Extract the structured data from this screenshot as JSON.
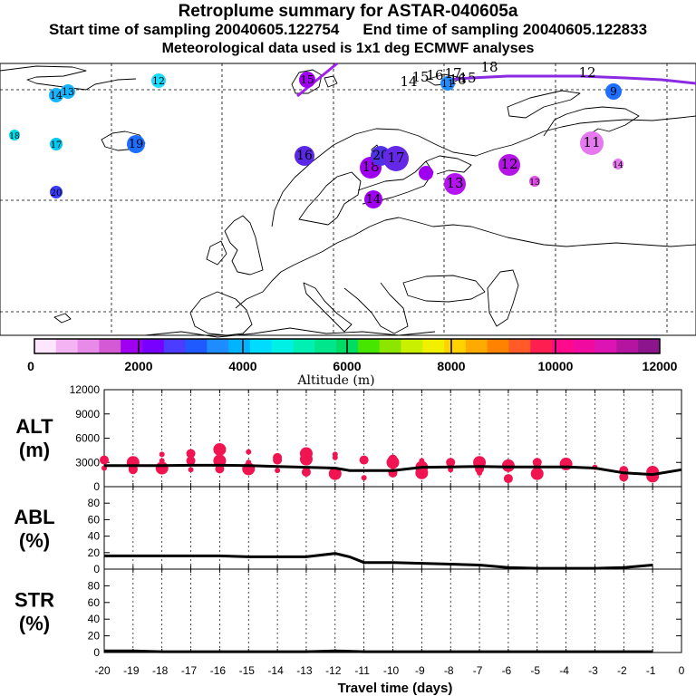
{
  "header": {
    "title": "Retroplume summary for ASTAR-040605a",
    "start_label": "Start time of sampling 20040605.122754",
    "end_label": "End time of sampling 20040605.122833",
    "met_label": "Meteorological data used is 1x1 deg ECMWF analyses"
  },
  "colorbar": {
    "ticks": [
      "0",
      "2000",
      "4000",
      "6000",
      "8000",
      "10000",
      "12000"
    ],
    "label": "Altitude (m)",
    "colors": [
      "#ffe6ff",
      "#f4b4f4",
      "#e88ae8",
      "#d45ad4",
      "#a000f0",
      "#7800ff",
      "#4b3cff",
      "#1e5aff",
      "#1e8cff",
      "#00b4ff",
      "#00dcff",
      "#00f0e6",
      "#00f0b4",
      "#00e68c",
      "#00dc64",
      "#46e600",
      "#8ce600",
      "#c8f000",
      "#f0f000",
      "#ffd200",
      "#ffaa00",
      "#ff8200",
      "#ff5a28",
      "#ff1e50",
      "#ff0a8c",
      "#f00aa0",
      "#dc14b4",
      "#b414a0",
      "#8c148c"
    ]
  },
  "map": {
    "markers": [
      {
        "label": "20",
        "color": "#3c3cff"
      },
      {
        "label": "19",
        "color": "#1e6eff"
      },
      {
        "label": "18",
        "color": "#00dce6"
      },
      {
        "label": "17",
        "color": "#00c8f0"
      },
      {
        "label": "14",
        "color": "#14b4ff"
      },
      {
        "label": "13",
        "color": "#14b4ff"
      },
      {
        "label": "12",
        "color": "#1edcff"
      },
      {
        "label": "11",
        "color": "#1e8cff"
      },
      {
        "label": "9",
        "color": "#1e6eff"
      },
      {
        "label": "16",
        "color": "#5a28e6"
      },
      {
        "label": "18",
        "color": "#a000f0"
      },
      {
        "label": "20",
        "color": "#5032e6"
      },
      {
        "label": "17",
        "color": "#6428e6"
      },
      {
        "label": "15",
        "color": "#a000f0"
      },
      {
        "label": "14",
        "color": "#a000f0"
      },
      {
        "label": "13",
        "color": "#b414f0"
      },
      {
        "label": "12",
        "color": "#b414e6"
      },
      {
        "label": "11",
        "color": "#e678f0"
      },
      {
        "label": "13",
        "color": "#dc50e6"
      },
      {
        "label": "14",
        "color": "#e678f0"
      }
    ],
    "track_labels": [
      "14",
      "15",
      "16",
      "17",
      "18",
      "16",
      "15",
      "12"
    ]
  },
  "alt_panel": {
    "title": "ALT",
    "unit": "(m)",
    "yticks": [
      "12000",
      "9000",
      "6000",
      "3000",
      "0"
    ]
  },
  "abl_panel": {
    "title": "ABL",
    "unit": "(%)",
    "yticks": [
      "80",
      "60",
      "40",
      "20",
      "0"
    ]
  },
  "str_panel": {
    "title": "STR",
    "unit": "(%)",
    "yticks": [
      "80",
      "60",
      "40",
      "20",
      "0"
    ]
  },
  "xaxis": {
    "ticks": [
      "-20",
      "-19",
      "-18",
      "-17",
      "-16",
      "-15",
      "-14",
      "-13",
      "-12",
      "-11",
      "-10",
      "-9",
      "-8",
      "-7",
      "-6",
      "-5",
      "-4",
      "-3",
      "-2",
      "-1",
      "0"
    ],
    "label": "Travel time (days)"
  },
  "chart_data": [
    {
      "type": "line",
      "title": "ALT",
      "ylabel": "(m)",
      "xlabel": "Travel time (days)",
      "ylim": [
        0,
        12000
      ],
      "xlim": [
        -20,
        0
      ],
      "series": [
        {
          "name": "mean altitude",
          "x": [
            -20,
            -19,
            -18,
            -17,
            -16,
            -15,
            -14,
            -13,
            -12,
            -11.5,
            -11,
            -10,
            -9,
            -8,
            -7,
            -6,
            -5,
            -4,
            -3,
            -2,
            -1,
            0
          ],
          "values": [
            2600,
            2600,
            2600,
            2650,
            2650,
            2600,
            2500,
            2400,
            2300,
            2000,
            2000,
            2000,
            2400,
            2450,
            2500,
            2450,
            2450,
            2450,
            2300,
            1700,
            1500,
            2100
          ]
        }
      ],
      "scatter": [
        {
          "x": -20,
          "y": 3300
        },
        {
          "x": -19,
          "y": 3000
        },
        {
          "x": -18,
          "y": 3200
        },
        {
          "x": -17,
          "y": 3200
        },
        {
          "x": -16,
          "y": 3200
        },
        {
          "x": -15,
          "y": 3000
        },
        {
          "x": -14,
          "y": 3300
        },
        {
          "x": -13,
          "y": 3400
        },
        {
          "x": -12,
          "y": 3600
        },
        {
          "x": -11,
          "y": 3300
        },
        {
          "x": -10,
          "y": 3000
        },
        {
          "x": -9,
          "y": 3200
        },
        {
          "x": -8,
          "y": 3000
        },
        {
          "x": -7,
          "y": 3000
        },
        {
          "x": -6,
          "y": 2900
        },
        {
          "x": -5,
          "y": 3000
        },
        {
          "x": -4,
          "y": 2800
        },
        {
          "x": -3,
          "y": 2400
        },
        {
          "x": -2,
          "y": 2000
        },
        {
          "x": -1,
          "y": 1800
        },
        {
          "x": -20,
          "y": 2300
        },
        {
          "x": -19,
          "y": 2100
        },
        {
          "x": -18,
          "y": 2300
        },
        {
          "x": -17,
          "y": 2100
        },
        {
          "x": -16,
          "y": 2200
        },
        {
          "x": -15,
          "y": 2200
        },
        {
          "x": -14,
          "y": 2000
        },
        {
          "x": -13,
          "y": 1800
        },
        {
          "x": -12,
          "y": 1600
        },
        {
          "x": -11,
          "y": 1100
        },
        {
          "x": -10,
          "y": 1700
        },
        {
          "x": -9,
          "y": 2400
        },
        {
          "x": -8,
          "y": 2100
        },
        {
          "x": -7,
          "y": 2200
        },
        {
          "x": -6,
          "y": 2600
        },
        {
          "x": -5,
          "y": 2200
        },
        {
          "x": -2,
          "y": 1200
        },
        {
          "x": -1,
          "y": 1300
        },
        {
          "x": -18,
          "y": 4000
        },
        {
          "x": -17,
          "y": 4100
        },
        {
          "x": -16,
          "y": 4600
        },
        {
          "x": -15,
          "y": 4300
        },
        {
          "x": -14,
          "y": 3600
        },
        {
          "x": -13,
          "y": 4100
        },
        {
          "x": -12,
          "y": 4000
        },
        {
          "x": -10,
          "y": 3400
        },
        {
          "x": -9,
          "y": 1700
        },
        {
          "x": -7,
          "y": 1700
        },
        {
          "x": -6,
          "y": 1000
        },
        {
          "x": -5,
          "y": 1600
        },
        {
          "x": -4,
          "y": 2600
        },
        {
          "x": -19,
          "y": 2200
        }
      ]
    },
    {
      "type": "line",
      "title": "ABL",
      "ylabel": "(%)",
      "ylim": [
        0,
        100
      ],
      "xlim": [
        -20,
        0
      ],
      "series": [
        {
          "name": "ABL fraction",
          "x": [
            -20,
            -19,
            -18,
            -17,
            -16,
            -15,
            -14,
            -13,
            -12,
            -11.5,
            -11,
            -10,
            -9,
            -8,
            -7,
            -6,
            -5,
            -4,
            -3,
            -2,
            -1
          ],
          "values": [
            16,
            16,
            16,
            16,
            16,
            15,
            15,
            15,
            19,
            15,
            8,
            8,
            7,
            6,
            5,
            2,
            1,
            1,
            1,
            2,
            5
          ]
        }
      ]
    },
    {
      "type": "line",
      "title": "STR",
      "ylabel": "(%)",
      "ylim": [
        0,
        100
      ],
      "xlim": [
        -20,
        0
      ],
      "series": [
        {
          "name": "STR fraction",
          "x": [
            -20,
            -19,
            -18,
            -17,
            -16,
            -15,
            -14,
            -13,
            -12,
            -11,
            -10,
            -9,
            -8,
            -7,
            -6,
            -5,
            -4,
            -3,
            -2,
            -1
          ],
          "values": [
            2,
            2,
            1,
            1,
            1,
            1,
            1,
            1,
            2,
            1,
            1,
            1,
            1,
            1,
            1,
            1,
            1,
            1,
            1,
            1
          ]
        }
      ]
    }
  ]
}
